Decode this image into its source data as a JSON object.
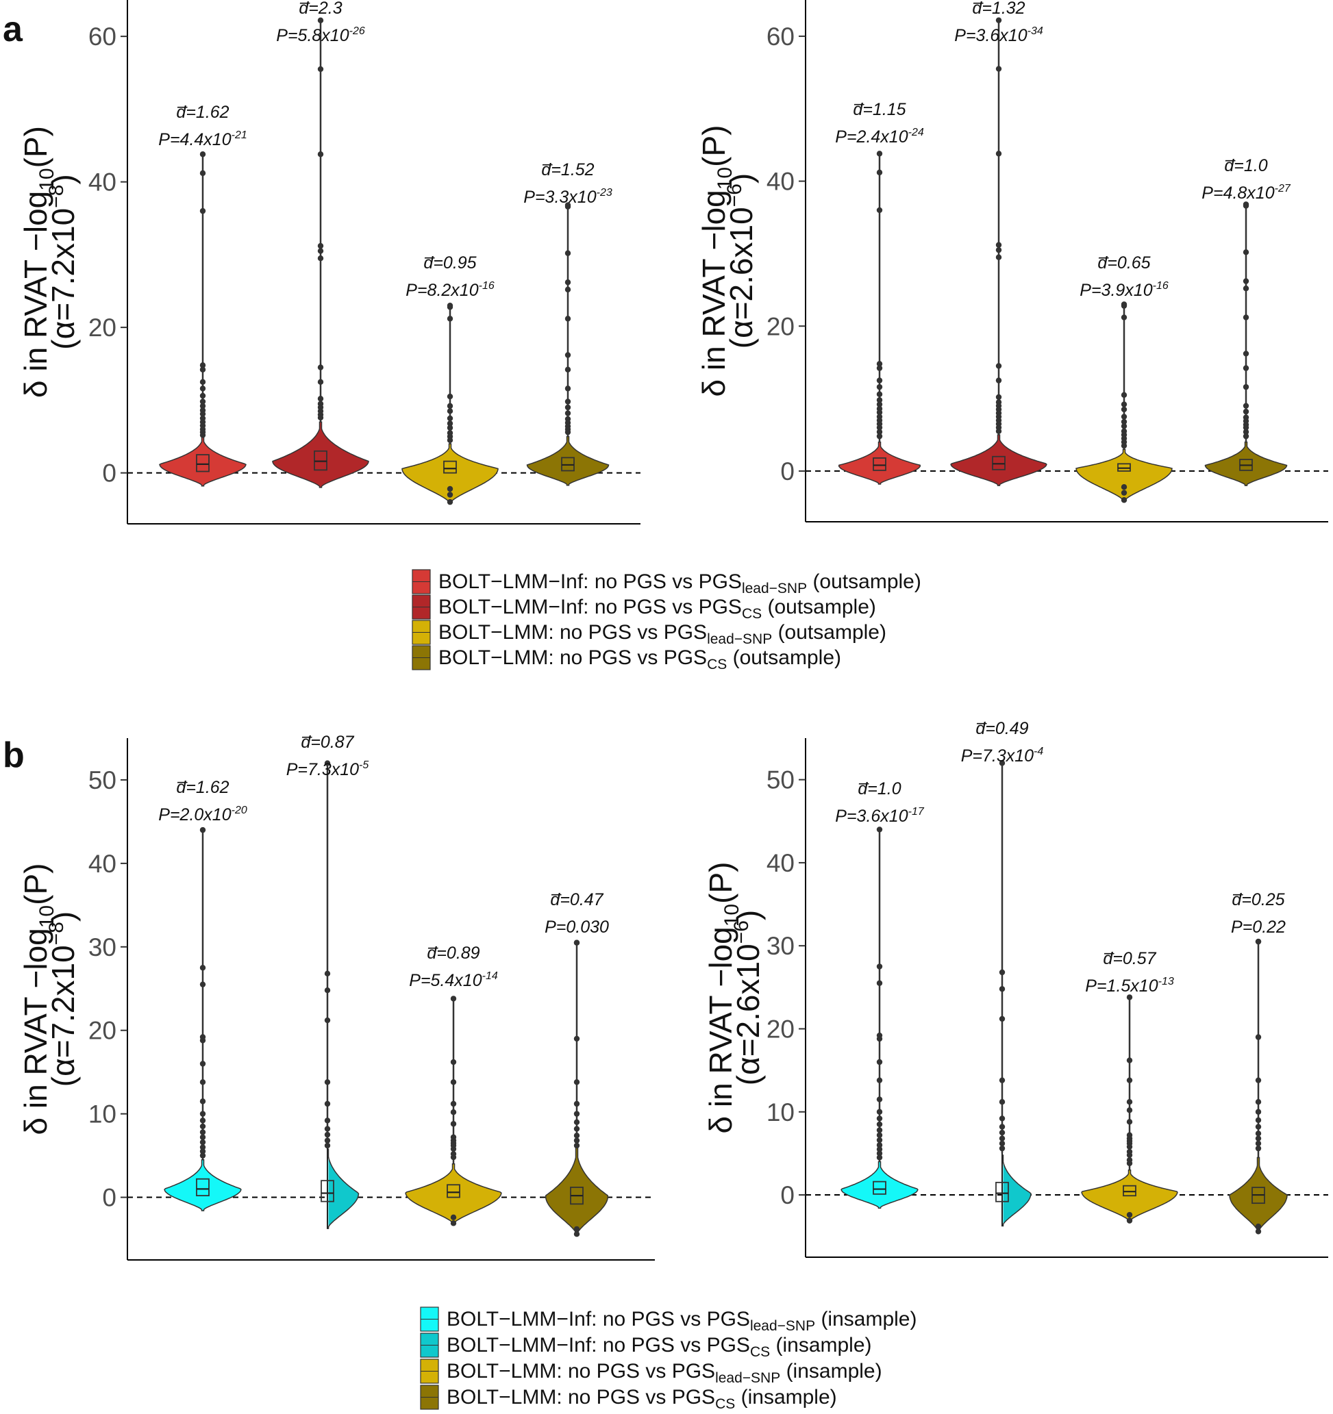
{
  "figure": {
    "panels": [
      {
        "label": "a",
        "legend": [
          {
            "prefix": "BOLT−LMM−Inf: no PGS vs  PGS",
            "subscript": "lead−SNP",
            "suffix": " (outsample)",
            "color": "#d53a35"
          },
          {
            "prefix": "BOLT−LMM−Inf: no PGS vs  PGS",
            "subscript": "CS",
            "suffix": " (outsample)",
            "color": "#b12729"
          },
          {
            "prefix": "BOLT−LMM: no PGS vs  PGS",
            "subscript": "lead−SNP",
            "suffix": " (outsample)",
            "color": "#d4b106"
          },
          {
            "prefix": "BOLT−LMM: no PGS vs  PGS",
            "subscript": "CS",
            "suffix": " (outsample)",
            "color": "#8c7505"
          }
        ]
      },
      {
        "label": "b",
        "legend": [
          {
            "prefix": "BOLT−LMM−Inf: no PGS vs  PGS",
            "subscript": "lead−SNP",
            "suffix": " (insample)",
            "color": "#14f8f8"
          },
          {
            "prefix": "BOLT−LMM−Inf: no PGS vs  PGS",
            "subscript": "CS",
            "suffix": " (insample)",
            "color": "#10c8cc"
          },
          {
            "prefix": "BOLT−LMM: no PGS vs  PGS",
            "subscript": "lead−SNP",
            "suffix": " (insample)",
            "color": "#d4b106"
          },
          {
            "prefix": "BOLT−LMM: no PGS vs  PGS",
            "subscript": "CS",
            "suffix": " (insample)",
            "color": "#8c7505"
          }
        ]
      }
    ]
  },
  "chart_data": [
    {
      "type": "violin",
      "panel": "a",
      "ylabel": "δ in RVAT −log10(P) (α=7.2x10−8)",
      "ylabel_line1": "δ in RVAT −log",
      "ylabel_line1_sub": "10",
      "ylabel_line1_end": "(P)",
      "ylabel_line2": "(α=7.2x10",
      "ylabel_line2_sup": "−8",
      "ylabel_line2_end": ")",
      "ylim": [
        -7,
        65
      ],
      "yticks": [
        0,
        20,
        40,
        60
      ],
      "reference_line": 0,
      "series": [
        {
          "color": "#d53a35",
          "d": "1.62",
          "p_base": "P=4.4x10",
          "p_exp": "-21",
          "median": 1.2,
          "q1": 0.2,
          "q3": 2.5,
          "min": -1.8,
          "max": 43.8,
          "bulk_top": 5,
          "width": 0.9,
          "outliers": [
            41.2,
            36,
            14.8,
            14.2,
            12.5,
            11.6,
            10.6,
            9.8,
            9.2,
            8.6,
            8.1,
            7.5,
            7.0,
            6.5,
            6.0,
            5.6,
            5.2
          ]
        },
        {
          "color": "#b12729",
          "d": "2.3",
          "p_base": "P=5.8x10",
          "p_exp": "-26",
          "median": 1.6,
          "q1": 0.4,
          "q3": 3.0,
          "min": -2.0,
          "max": 62.2,
          "bulk_top": 7,
          "width": 1.0,
          "outliers": [
            55.5,
            43.8,
            31.2,
            30.5,
            29.5,
            14.5,
            12.5,
            10.2,
            9.5,
            9.0,
            8.5,
            8.0,
            7.6
          ]
        },
        {
          "color": "#d4b106",
          "d": "0.95",
          "p_base": "P=8.2x10",
          "p_exp": "-16",
          "median": 0.6,
          "q1": 0.0,
          "q3": 1.6,
          "min": -4.2,
          "max": 23.0,
          "bulk_top": 4,
          "width": 1.0,
          "outliers": [
            22.8,
            21.2,
            10.5,
            9.2,
            8.5,
            7.5,
            6.8,
            6.2,
            5.5,
            5.0,
            4.5,
            -2.2,
            -3.0,
            -4.0
          ]
        },
        {
          "color": "#8c7505",
          "d": "1.52",
          "p_base": "P=3.3x10",
          "p_exp": "-23",
          "median": 1.1,
          "q1": 0.3,
          "q3": 2.1,
          "min": -1.7,
          "max": 36.8,
          "bulk_top": 5,
          "width": 0.85,
          "outliers": [
            36.6,
            30.2,
            26.2,
            25.2,
            21.2,
            16.2,
            14.2,
            11.6,
            9.8,
            9.0,
            8.2,
            7.4,
            6.9,
            6.4,
            6.0,
            5.6
          ]
        }
      ]
    },
    {
      "type": "violin",
      "panel": "a",
      "ylabel": "δ in RVAT −log10(P) (α=2.6x10−6)",
      "ylabel_line1": "δ in RVAT −log",
      "ylabel_line1_sub": "10",
      "ylabel_line1_end": "(P)",
      "ylabel_line2": "(α=2.6x10",
      "ylabel_line2_sup": "−6",
      "ylabel_line2_end": ")",
      "ylim": [
        -7,
        65
      ],
      "yticks": [
        0,
        20,
        40,
        60
      ],
      "reference_line": 0,
      "series": [
        {
          "color": "#d53a35",
          "d": "1.15",
          "p_base": "P=2.4x10",
          "p_exp": "-24",
          "median": 0.8,
          "q1": 0.1,
          "q3": 1.8,
          "min": -1.8,
          "max": 43.8,
          "bulk_top": 4,
          "width": 0.85,
          "outliers": [
            41.2,
            36,
            14.8,
            14.2,
            12.5,
            11.6,
            10.6,
            9.8,
            9.2,
            8.6,
            8.1,
            7.5,
            7.0,
            6.5,
            6.0,
            5.4,
            4.8
          ]
        },
        {
          "color": "#b12729",
          "d": "1.32",
          "p_base": "P=3.6x10",
          "p_exp": "-34",
          "median": 1.0,
          "q1": 0.2,
          "q3": 2.0,
          "min": -2.0,
          "max": 62.2,
          "bulk_top": 5,
          "width": 1.0,
          "outliers": [
            55.5,
            43.8,
            31.2,
            30.5,
            29.5,
            14.5,
            12.5,
            10.2,
            9.5,
            9.0,
            8.5,
            8.0,
            7.5,
            7.0,
            6.5,
            6.0,
            5.5
          ]
        },
        {
          "color": "#d4b106",
          "d": "0.65",
          "p_base": "P=3.9x10",
          "p_exp": "-16",
          "median": 0.4,
          "q1": 0.0,
          "q3": 1.0,
          "min": -4.2,
          "max": 23.0,
          "bulk_top": 3,
          "width": 1.0,
          "outliers": [
            22.8,
            21.2,
            10.5,
            9.2,
            8.5,
            7.5,
            6.8,
            6.2,
            5.5,
            5.0,
            4.5,
            4.0,
            3.5,
            -2.2,
            -3.0,
            -4.0
          ]
        },
        {
          "color": "#8c7505",
          "d": "1.0",
          "p_base": "P=4.8x10",
          "p_exp": "-27",
          "median": 0.8,
          "q1": 0.1,
          "q3": 1.6,
          "min": -2.0,
          "max": 36.8,
          "bulk_top": 4,
          "width": 0.85,
          "outliers": [
            36.6,
            30.2,
            26.2,
            25.2,
            21.2,
            16.2,
            14.2,
            11.6,
            9.0,
            8.2,
            7.4,
            6.9,
            6.4,
            6.0,
            5.4,
            4.8
          ]
        }
      ]
    },
    {
      "type": "violin",
      "panel": "b",
      "ylabel": "δ in RVAT −log10(P) (α=7.2x10−8)",
      "ylabel_line1": "δ in RVAT −log",
      "ylabel_line1_sub": "10",
      "ylabel_line1_end": "(P)",
      "ylabel_line2": "(α=7.2x10",
      "ylabel_line2_sup": "−8",
      "ylabel_line2_end": ")",
      "ylim": [
        -7.5,
        55
      ],
      "yticks": [
        0,
        10,
        20,
        30,
        40,
        50
      ],
      "reference_line": 0,
      "series": [
        {
          "color": "#14f8f8",
          "d": "1.62",
          "p_base": "P=2.0x10",
          "p_exp": "-20",
          "median": 1.0,
          "q1": 0.2,
          "q3": 2.2,
          "min": -1.6,
          "max": 44.0,
          "bulk_top": 4.5,
          "width": 0.8,
          "outliers": [
            27.5,
            25.5,
            19.2,
            18.8,
            16.0,
            13.8,
            11.5,
            10.0,
            9.2,
            8.5,
            7.8,
            7.2,
            6.6,
            6.0,
            5.5,
            5.0
          ]
        },
        {
          "color": "#10c8cc",
          "d": "0.87",
          "p_base": "P=7.3x10",
          "p_exp": "-5",
          "median": 0.5,
          "q1": -0.5,
          "q3": 2.0,
          "min": -3.8,
          "max": 52.0,
          "bulk_top": 6,
          "width": 0.65,
          "outliers": [
            26.8,
            24.8,
            21.2,
            13.8,
            11.2,
            9.2,
            8.2,
            7.5,
            6.8,
            6.2
          ]
        },
        {
          "color": "#d4b106",
          "d": "0.89",
          "p_base": "P=5.4x10",
          "p_exp": "-14",
          "median": 0.6,
          "q1": 0.0,
          "q3": 1.5,
          "min": -3.2,
          "max": 23.8,
          "bulk_top": 4,
          "width": 1.0,
          "outliers": [
            16.2,
            13.8,
            11.2,
            10.2,
            8.8,
            7.2,
            6.8,
            6.5,
            6.2,
            5.8,
            5.2,
            4.8,
            -2.4,
            -3.1
          ]
        },
        {
          "color": "#8c7505",
          "d": "0.47",
          "p_base": "P=0.030",
          "p_exp": "",
          "median": 0.2,
          "q1": -0.8,
          "q3": 1.2,
          "min": -4.5,
          "max": 30.5,
          "bulk_top": 6,
          "width": 0.65,
          "outliers": [
            30.5,
            19.0,
            13.8,
            11.2,
            10.0,
            9.0,
            8.2,
            7.4,
            6.8,
            6.2,
            -3.8,
            -4.4
          ]
        }
      ]
    },
    {
      "type": "violin",
      "panel": "b",
      "ylabel": "δ in RVAT −log10(P) (α=2.6x10−6)",
      "ylabel_line1": "δ in RVAT −log",
      "ylabel_line1_sub": "10",
      "ylabel_line1_end": "(P)",
      "ylabel_line2": "(α=2.6x10",
      "ylabel_line2_sup": "−6",
      "ylabel_line2_end": ")",
      "ylim": [
        -7.5,
        55
      ],
      "yticks": [
        0,
        10,
        20,
        30,
        40,
        50
      ],
      "reference_line": 0,
      "series": [
        {
          "color": "#14f8f8",
          "d": "1.0",
          "p_base": "P=3.6x10",
          "p_exp": "-17",
          "median": 0.7,
          "q1": 0.1,
          "q3": 1.6,
          "min": -1.6,
          "max": 44.0,
          "bulk_top": 4,
          "width": 0.8,
          "outliers": [
            27.5,
            25.5,
            19.2,
            18.8,
            16.0,
            13.8,
            11.5,
            10.0,
            9.2,
            8.5,
            7.8,
            7.2,
            6.6,
            6.0,
            5.5,
            5.0,
            4.5
          ]
        },
        {
          "color": "#10c8cc",
          "d": "0.49",
          "p_base": "P=7.3x10",
          "p_exp": "-4",
          "median": 0.2,
          "q1": -0.8,
          "q3": 1.5,
          "min": -3.8,
          "max": 52.0,
          "bulk_top": 5,
          "width": 0.6,
          "outliers": [
            26.8,
            24.8,
            21.2,
            13.8,
            11.2,
            9.2,
            8.2,
            7.5,
            6.8,
            6.2,
            5.6
          ]
        },
        {
          "color": "#d4b106",
          "d": "0.57",
          "p_base": "P=1.5x10",
          "p_exp": "-13",
          "median": 0.4,
          "q1": -0.1,
          "q3": 1.1,
          "min": -3.2,
          "max": 23.8,
          "bulk_top": 3,
          "width": 1.0,
          "outliers": [
            16.2,
            13.8,
            11.2,
            10.2,
            8.8,
            7.2,
            6.8,
            6.5,
            6.2,
            5.8,
            5.2,
            4.8,
            4.2,
            3.8,
            -2.4,
            -3.1
          ]
        },
        {
          "color": "#8c7505",
          "d": "0.25",
          "p_base": "P=0.22",
          "p_exp": "",
          "median": 0.0,
          "q1": -1.0,
          "q3": 0.9,
          "min": -4.5,
          "max": 30.5,
          "bulk_top": 4.5,
          "width": 0.6,
          "outliers": [
            30.5,
            19.0,
            13.8,
            11.2,
            10.0,
            9.0,
            8.2,
            7.4,
            6.8,
            6.2,
            5.6,
            -3.8,
            -4.4
          ]
        }
      ]
    }
  ]
}
